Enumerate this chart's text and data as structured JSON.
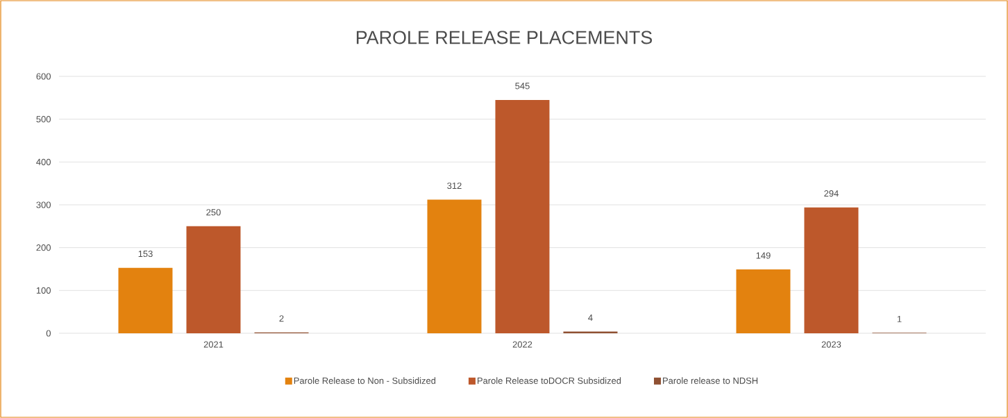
{
  "chart_data": {
    "type": "bar",
    "title": "PAROLE RELEASE PLACEMENTS",
    "categories": [
      "2021",
      "2022",
      "2023"
    ],
    "series": [
      {
        "name": "Parole Release  to Non - Subsidized",
        "color": "#e3820f",
        "values": [
          153,
          312,
          149
        ]
      },
      {
        "name": "Parole Release toDOCR Subsidized",
        "color": "#bd582b",
        "values": [
          250,
          545,
          294
        ]
      },
      {
        "name": "Parole release to NDSH",
        "color": "#8f5032",
        "values": [
          2,
          4,
          1
        ]
      }
    ],
    "ylim": [
      0,
      600
    ],
    "yticks": [
      0,
      100,
      200,
      300,
      400,
      500,
      600
    ],
    "grid": "y",
    "legend": "bottom",
    "data_labels": true
  }
}
